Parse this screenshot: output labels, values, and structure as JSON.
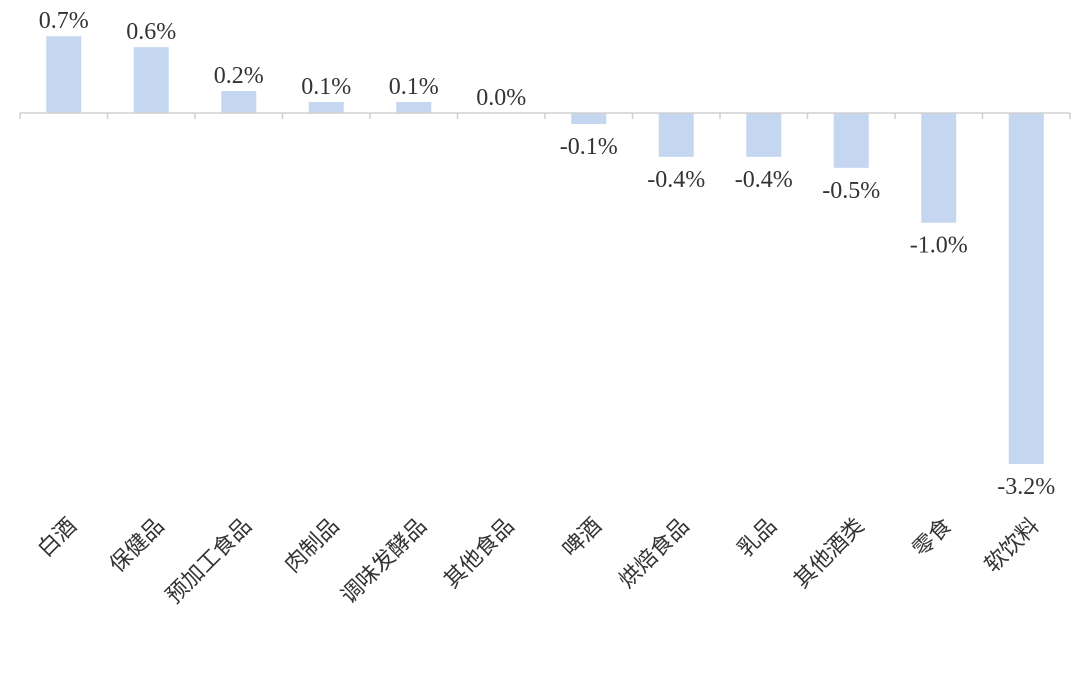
{
  "chart_data": {
    "type": "bar",
    "categories": [
      "白酒",
      "保健品",
      "预加工食品",
      "肉制品",
      "调味发酵品",
      "其他食品",
      "啤酒",
      "烘焙食品",
      "乳品",
      "其他酒类",
      "零食",
      "软饮料"
    ],
    "values": [
      0.7,
      0.6,
      0.2,
      0.1,
      0.1,
      0.0,
      -0.1,
      -0.4,
      -0.4,
      -0.5,
      -1.0,
      -3.2
    ],
    "data_labels": [
      "0.7%",
      "0.6%",
      "0.2%",
      "0.1%",
      "0.1%",
      "0.0%",
      "-0.1%",
      "-0.4%",
      "-0.4%",
      "-0.5%",
      "-1.0%",
      "-3.2%"
    ],
    "unit": "%",
    "title": "",
    "xlabel": "",
    "ylabel": "",
    "ylim": [
      -3.2,
      0.7
    ],
    "grid": false,
    "legend": "none",
    "bar_color": "#c5d7f0",
    "axis_color": "#d0d0d0",
    "text_color": "#333333"
  }
}
